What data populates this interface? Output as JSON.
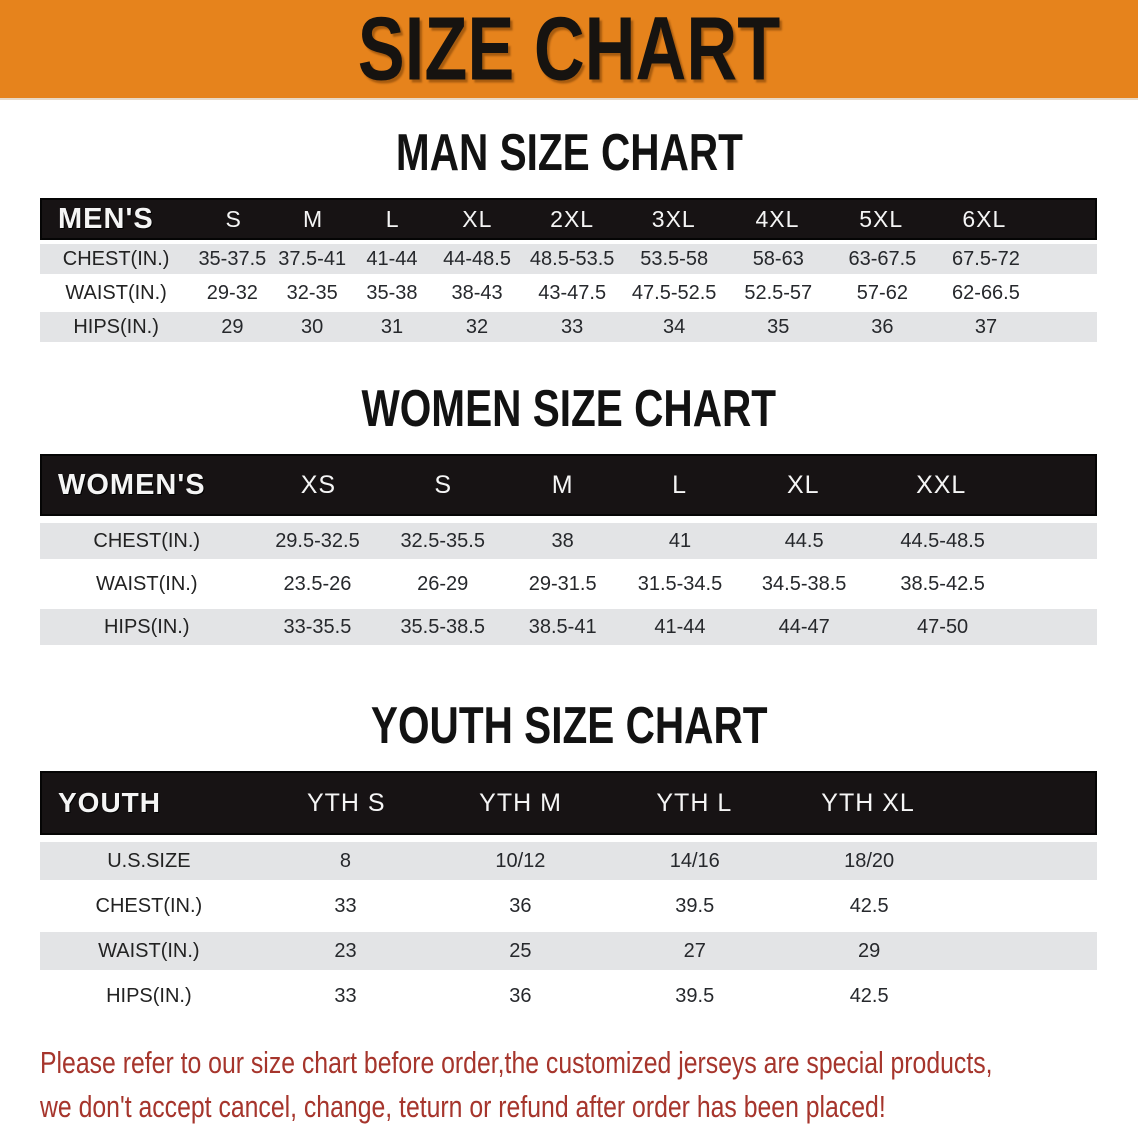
{
  "banner": {
    "title": "SIZE CHART",
    "bg_color": "#E6831C"
  },
  "men": {
    "heading": "MAN SIZE CHART",
    "header_label": "MEN'S",
    "columns": [
      "S",
      "M",
      "L",
      "XL",
      "2XL",
      "3XL",
      "4XL",
      "5XL",
      "6XL"
    ],
    "rows": [
      {
        "label": "CHEST(IN.)",
        "values": [
          "35-37.5",
          "37.5-41",
          "41-44",
          "44-48.5",
          "48.5-53.5",
          "53.5-58",
          "58-63",
          "63-67.5",
          "67.5-72"
        ]
      },
      {
        "label": "WAIST(IN.)",
        "values": [
          "29-32",
          "32-35",
          "35-38",
          "38-43",
          "43-47.5",
          "47.5-52.5",
          "52.5-57",
          "57-62",
          "62-66.5"
        ]
      },
      {
        "label": "HIPS(IN.)",
        "values": [
          "29",
          "30",
          "31",
          "32",
          "33",
          "34",
          "35",
          "36",
          "37"
        ]
      }
    ]
  },
  "women": {
    "heading": "WOMEN SIZE CHART",
    "header_label": "WOMEN'S",
    "columns": [
      "XS",
      "S",
      "M",
      "L",
      "XL",
      "XXL"
    ],
    "rows": [
      {
        "label": "CHEST(IN.)",
        "values": [
          "29.5-32.5",
          "32.5-35.5",
          "38",
          "41",
          "44.5",
          "44.5-48.5"
        ]
      },
      {
        "label": "WAIST(IN.)",
        "values": [
          "23.5-26",
          "26-29",
          "29-31.5",
          "31.5-34.5",
          "34.5-38.5",
          "38.5-42.5"
        ]
      },
      {
        "label": "HIPS(IN.)",
        "values": [
          "33-35.5",
          "35.5-38.5",
          "38.5-41",
          "41-44",
          "44-47",
          "47-50"
        ]
      }
    ]
  },
  "youth": {
    "heading": "YOUTH SIZE CHART",
    "header_label": "YOUTH",
    "columns": [
      "YTH S",
      "YTH M",
      "YTH L",
      "YTH XL"
    ],
    "rows": [
      {
        "label": "U.S.SIZE",
        "values": [
          "8",
          "10/12",
          "14/16",
          "18/20"
        ]
      },
      {
        "label": "CHEST(IN.)",
        "values": [
          "33",
          "36",
          "39.5",
          "42.5"
        ]
      },
      {
        "label": "WAIST(IN.)",
        "values": [
          "23",
          "25",
          "27",
          "29"
        ]
      },
      {
        "label": "HIPS(IN.)",
        "values": [
          "33",
          "36",
          "39.5",
          "42.5"
        ]
      }
    ]
  },
  "footer": {
    "line1": "Please refer to our size chart before order,the customized jerseys are special products,",
    "line2": "we don't accept cancel, change, teturn or refund after order has been placed!",
    "color": "#A6352C"
  }
}
